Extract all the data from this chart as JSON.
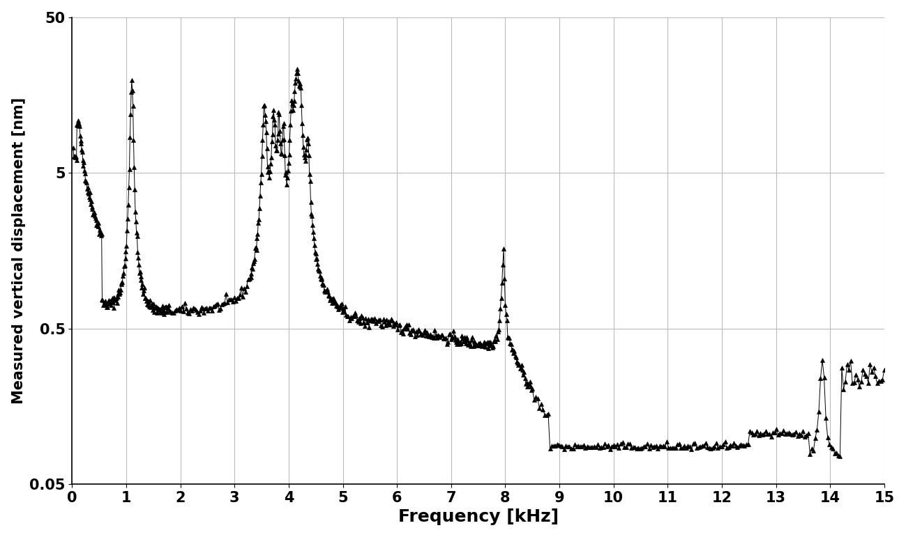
{
  "xlabel": "Frequency [kHz]",
  "ylabel": "Measured vertical displacement [nm]",
  "xlim": [
    0,
    15
  ],
  "ylim": [
    0.05,
    50
  ],
  "yticks": [
    0.05,
    0.5,
    5,
    50
  ],
  "ytick_labels": [
    "0.05",
    "0.5",
    "5",
    "50"
  ],
  "xticks": [
    0,
    1,
    2,
    3,
    4,
    5,
    6,
    7,
    8,
    9,
    10,
    11,
    12,
    13,
    14,
    15
  ],
  "marker": "^",
  "markersize": 4,
  "color": "black",
  "linewidth": 0.7,
  "background_color": "#ffffff",
  "grid_color": "#bbbbbb",
  "xlabel_fontsize": 18,
  "ylabel_fontsize": 15,
  "tick_fontsize": 15
}
